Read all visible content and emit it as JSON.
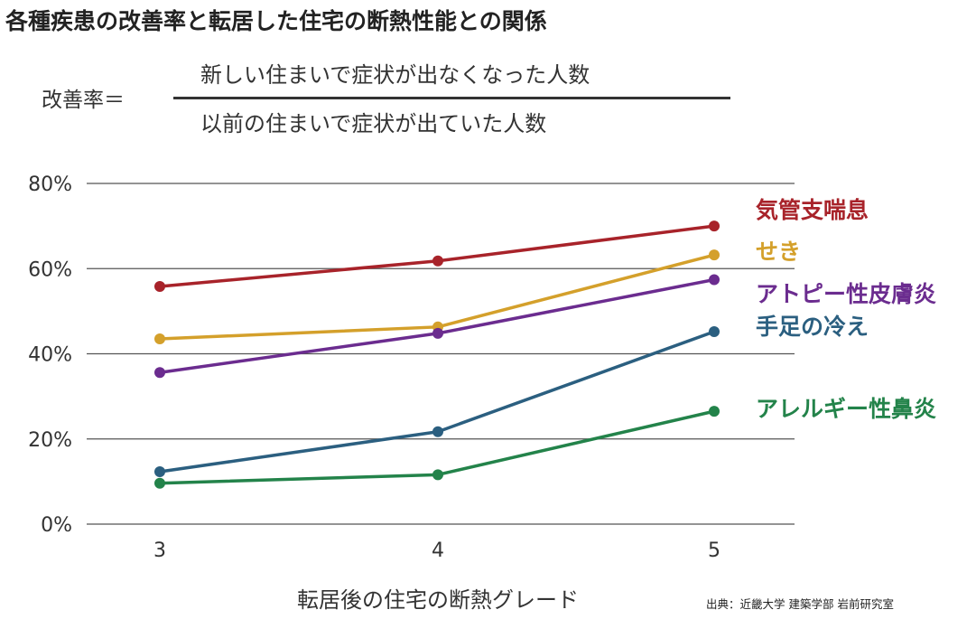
{
  "title": "各種疾患の改善率と転居した住宅の断熱性能との関係",
  "formula": {
    "label": "改善率＝",
    "numerator": "新しい住まいで症状が出なくなった人数",
    "denominator": "以前の住まいで症状が出ていた人数"
  },
  "source": "出典：近畿大学 建築学部 岩前研究室",
  "chart_data": {
    "type": "line",
    "xlabel": "転居後の住宅の断熱グレード",
    "ylabel": "",
    "x": [
      3,
      4,
      5
    ],
    "x_tick_labels": [
      "3",
      "4",
      "5"
    ],
    "ylim": [
      0,
      80
    ],
    "y_ticks": [
      0,
      20,
      40,
      60,
      80
    ],
    "y_tick_labels": [
      "0%",
      "20%",
      "40%",
      "60%",
      "80%"
    ],
    "grid": true,
    "legend": "direct labels at right end of lines",
    "series": [
      {
        "name": "気管支喘息",
        "color": "#a8232a",
        "values": [
          55.8,
          61.8,
          70.0
        ]
      },
      {
        "name": "せき",
        "color": "#d4a02b",
        "values": [
          43.5,
          46.3,
          63.2
        ]
      },
      {
        "name": "アトピー性皮膚炎",
        "color": "#6b2c8f",
        "values": [
          35.6,
          44.8,
          57.4
        ]
      },
      {
        "name": "手足の冷え",
        "color": "#2b5f80",
        "values": [
          12.3,
          21.7,
          45.2
        ]
      },
      {
        "name": "アレルギー性鼻炎",
        "color": "#23834a",
        "values": [
          9.6,
          11.6,
          26.5
        ]
      }
    ]
  }
}
